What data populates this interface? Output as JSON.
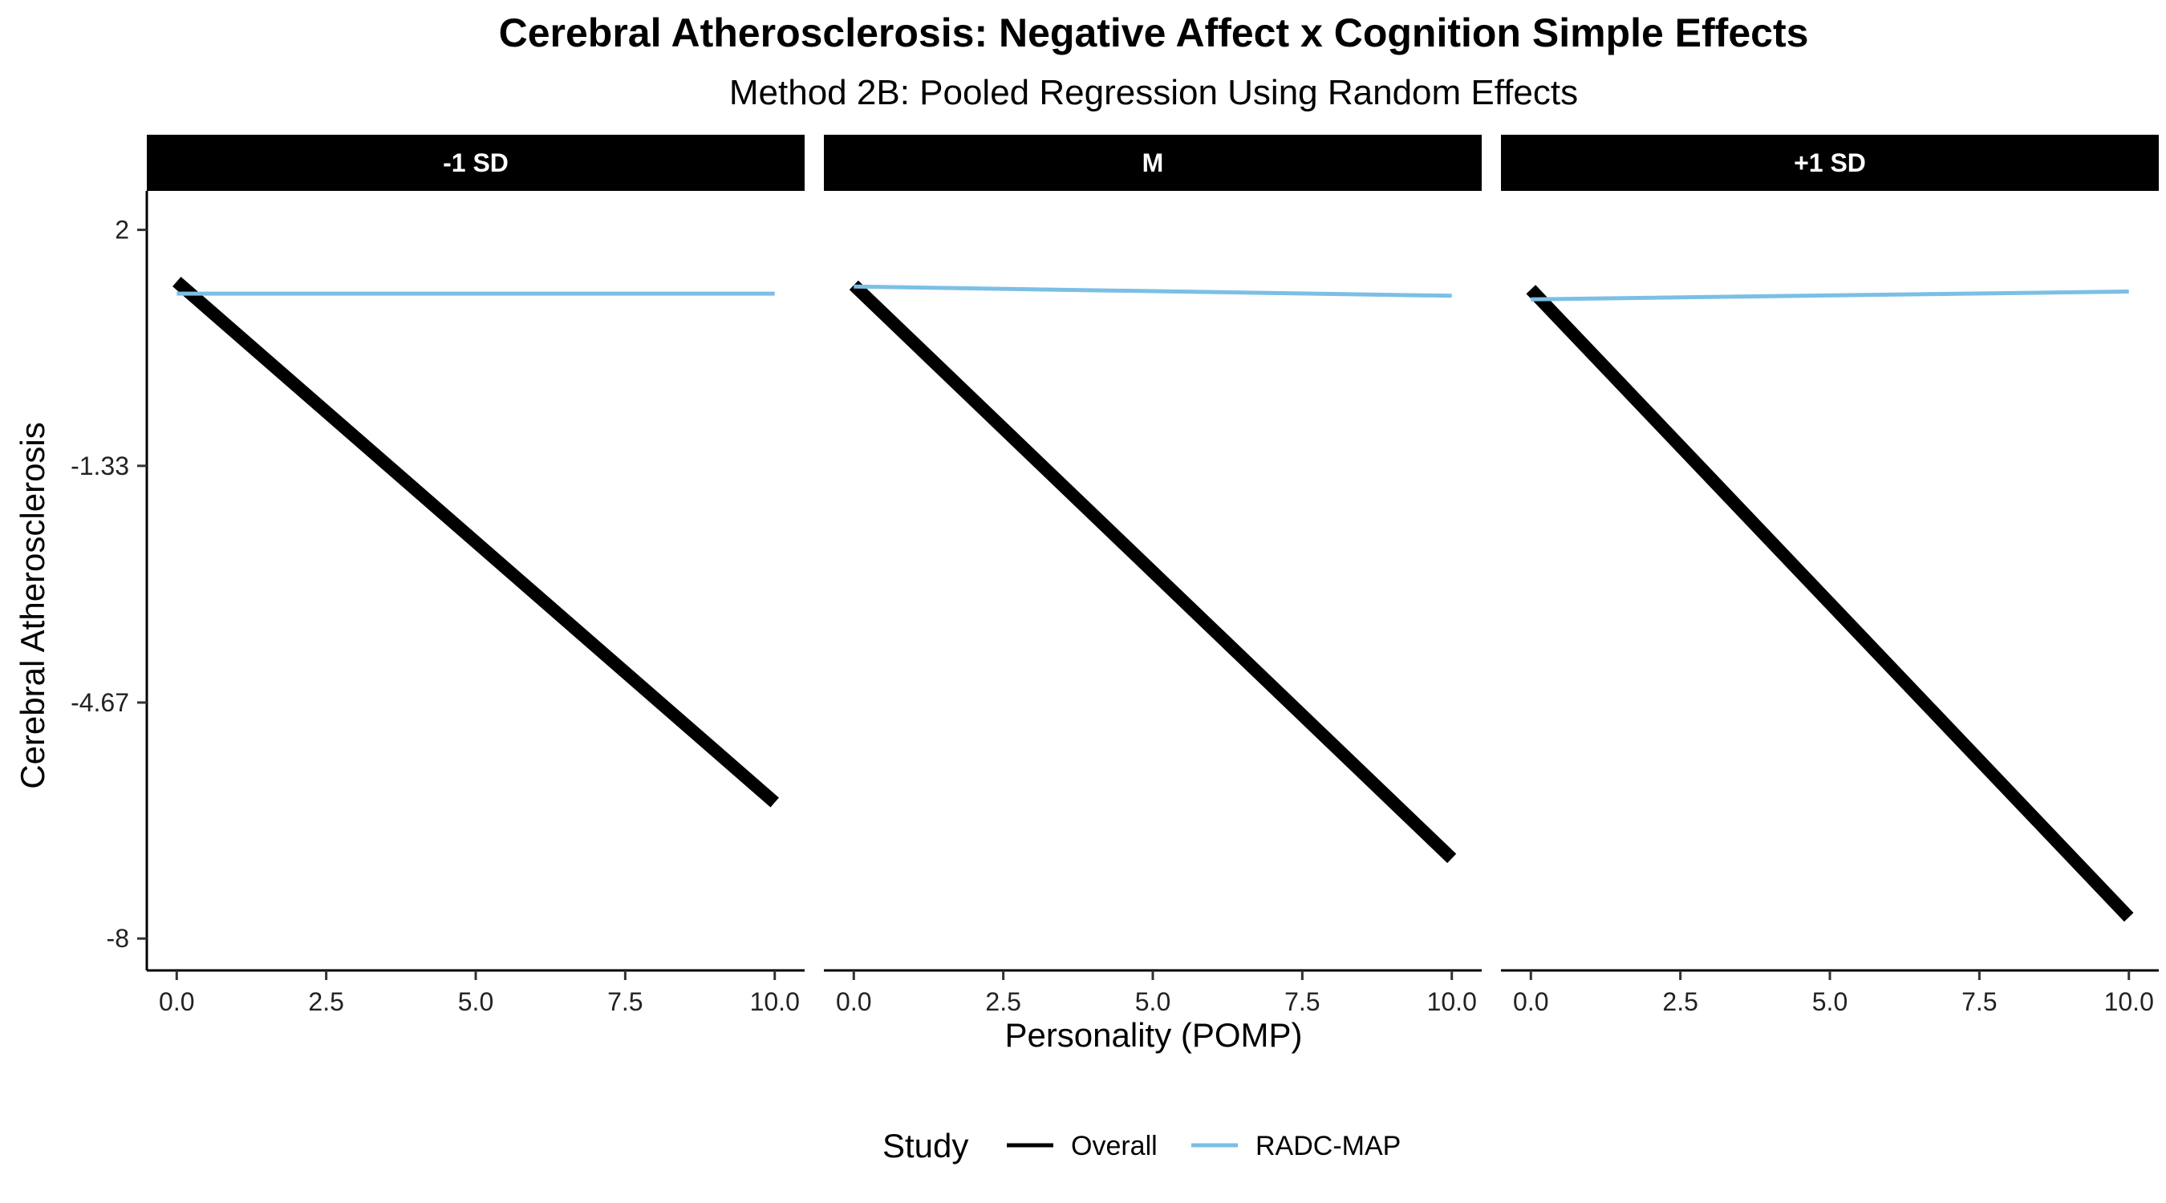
{
  "chart_data": {
    "type": "line",
    "title": "Cerebral Atherosclerosis: Negative Affect x Cognition Simple Effects",
    "subtitle": "Method 2B: Pooled Regression Using Random Effects",
    "xlabel": "Personality (POMP)",
    "ylabel": "Cerebral Atherosclerosis",
    "xlim": [
      -0.5,
      10.5
    ],
    "ylim": [
      -8.45,
      2.55
    ],
    "x_ticks": [
      "0.0",
      "2.5",
      "5.0",
      "7.5",
      "10.0"
    ],
    "x_tick_values": [
      0,
      2.5,
      5,
      7.5,
      10
    ],
    "y_ticks": [
      "2",
      "-1.33",
      "-4.67",
      "-8"
    ],
    "y_tick_values": [
      2,
      -1.33,
      -4.67,
      -8
    ],
    "grid": false,
    "legend": {
      "title": "Study",
      "placement": "bottom",
      "entries": [
        "Overall",
        "RADC-MAP"
      ]
    },
    "series_colors": {
      "Overall": "#000000",
      "RADC-MAP": "#7BBFE6"
    },
    "panels": [
      {
        "label": "-1 SD",
        "series": [
          {
            "name": "Overall",
            "x": [
              0,
              10
            ],
            "y": [
              1.27,
              -6.08
            ]
          },
          {
            "name": "RADC-MAP",
            "x": [
              0,
              10
            ],
            "y": [
              1.1,
              1.1
            ]
          }
        ]
      },
      {
        "label": "M",
        "series": [
          {
            "name": "Overall",
            "x": [
              0,
              10
            ],
            "y": [
              1.22,
              -6.87
            ]
          },
          {
            "name": "RADC-MAP",
            "x": [
              0,
              10
            ],
            "y": [
              1.2,
              1.07
            ]
          }
        ]
      },
      {
        "label": "+1 SD",
        "series": [
          {
            "name": "Overall",
            "x": [
              0,
              10
            ],
            "y": [
              1.16,
              -7.7
            ]
          },
          {
            "name": "RADC-MAP",
            "x": [
              0,
              10
            ],
            "y": [
              1.02,
              1.13
            ]
          }
        ]
      }
    ]
  }
}
